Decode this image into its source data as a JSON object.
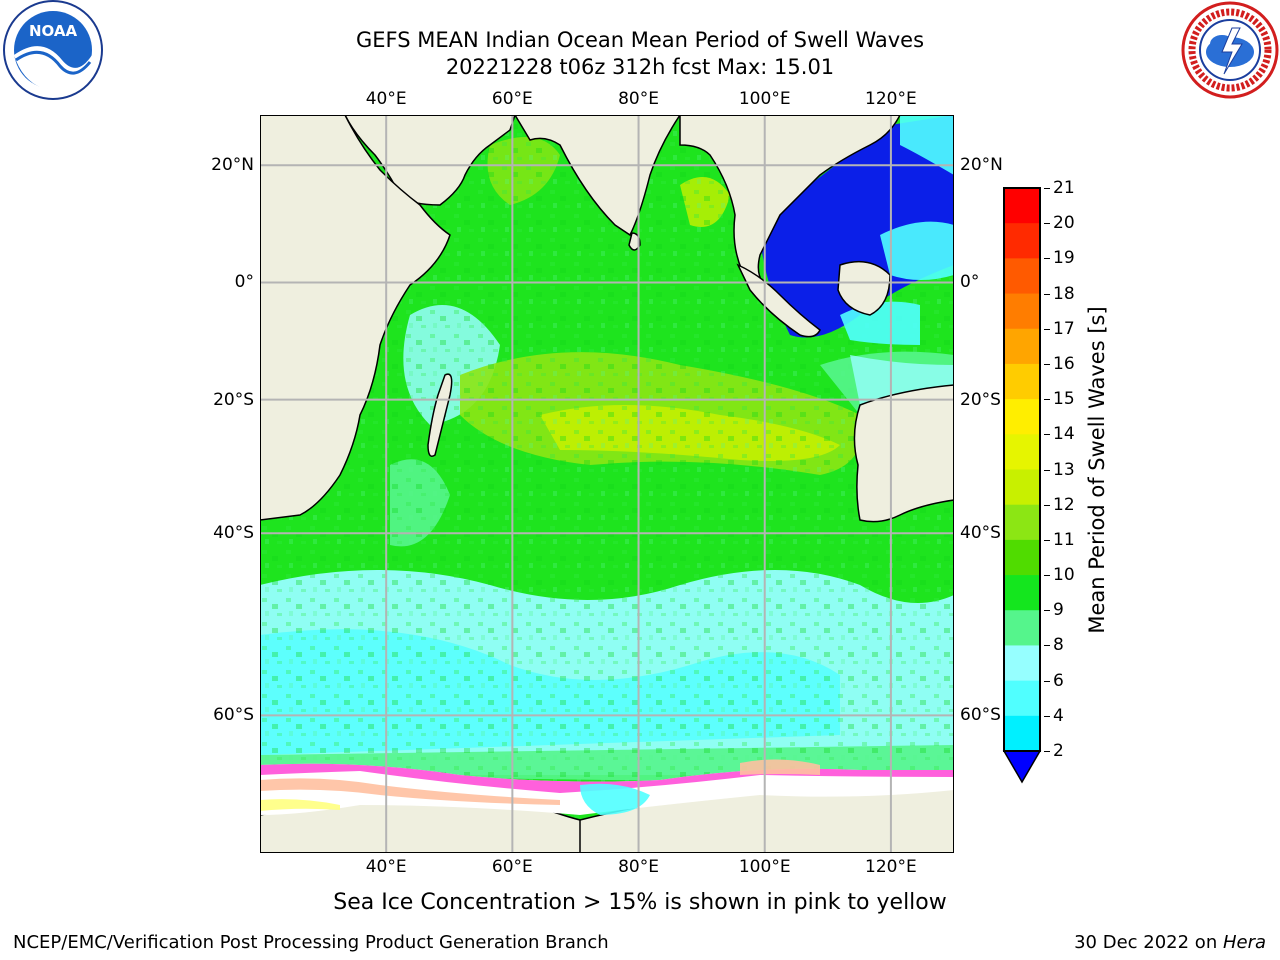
{
  "header": {
    "title_line1": "GEFS MEAN Indian Ocean Mean Period of Swell Waves",
    "title_line2": "20221228 t06z 312h fcst   Max: 15.01"
  },
  "logos": {
    "left_name": "noaa-logo",
    "left_text": "NOAA",
    "right_name": "nws-logo"
  },
  "map": {
    "lon_ticks": [
      "40°E",
      "60°E",
      "80°E",
      "100°E",
      "120°E"
    ],
    "lat_ticks_left": [
      "20°N",
      "0°",
      "20°S",
      "40°S",
      "60°S"
    ],
    "lat_ticks_right": [
      "20°N",
      "0°",
      "20°S",
      "40°S",
      "60°S"
    ],
    "lon_range": [
      20,
      130
    ],
    "lat_range": [
      -70,
      28
    ],
    "land_color": "#efefdf",
    "ocean_base_color": "#1ee41e",
    "ice_colors": [
      "#ff4fd8",
      "#ffc0a0",
      "#ffff80"
    ]
  },
  "colorbar": {
    "label": "Mean Period of Swell Waves [s]",
    "ticks": [
      "21",
      "20",
      "19",
      "18",
      "17",
      "16",
      "15",
      "14",
      "13",
      "12",
      "11",
      "10",
      "9",
      "8",
      "6",
      "4",
      "2"
    ],
    "colors": [
      "#ff0000",
      "#ff2a00",
      "#ff5a00",
      "#ff7d00",
      "#ffa500",
      "#ffcc00",
      "#ffee00",
      "#e6f500",
      "#c8f000",
      "#8ce614",
      "#50dc00",
      "#14e61e",
      "#55f58c",
      "#96ffff",
      "#50ffff",
      "#00f0ff",
      "#0080ff"
    ],
    "extend_color": "#0000ff"
  },
  "caption": "Sea Ice Concentration > 15% is shown in pink to yellow",
  "footer": {
    "left": "NCEP/EMC/Verification Post Processing Product Generation Branch",
    "right_prefix": "30 Dec 2022 on ",
    "right_host": "Hera"
  }
}
